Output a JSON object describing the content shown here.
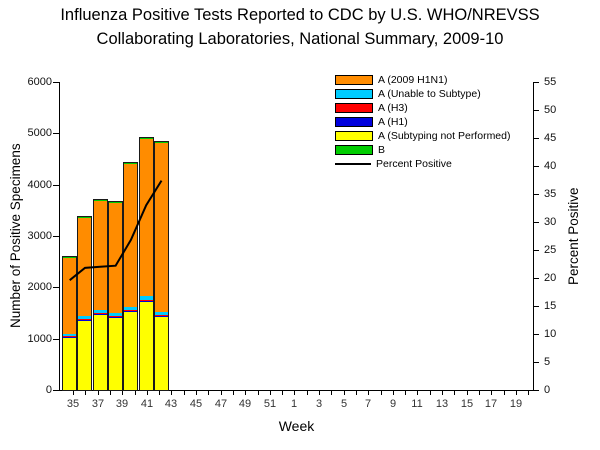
{
  "title": {
    "line1": "Influenza Positive Tests Reported to CDC by U.S. WHO/NREVSS",
    "line2": "Collaborating Laboratories, National Summary, 2009-10"
  },
  "chart_data": {
    "type": "bar",
    "subtype": "stacked-bars-with-line",
    "title": "Influenza Positive Tests Reported to CDC by U.S. WHO/NREVSS Collaborating Laboratories, National Summary, 2009-10",
    "xlabel": "Week",
    "ylabel_left": "Number of Positive Specimens",
    "ylabel_right": "Percent Positive",
    "ylim_left": [
      0,
      6000
    ],
    "ytick_step_left": 1000,
    "ylim_right": [
      0,
      55
    ],
    "ytick_step_right": 5,
    "grid": "off",
    "legend_position": "top-right",
    "x_weeks": [
      35,
      36,
      37,
      38,
      39,
      40,
      41,
      42,
      43,
      44,
      45,
      46,
      47,
      48,
      49,
      50,
      51,
      52,
      1,
      2,
      3,
      4,
      5,
      6,
      7,
      8,
      9,
      10,
      11,
      12,
      13,
      14,
      15,
      16,
      17,
      18,
      19,
      20
    ],
    "x_tick_labels": [
      "35",
      "37",
      "39",
      "41",
      "43",
      "45",
      "47",
      "49",
      "51",
      "1",
      "3",
      "5",
      "7",
      "9",
      "11",
      "13",
      "15",
      "17",
      "19"
    ],
    "bar_weeks": [
      35,
      36,
      37,
      38,
      39,
      40,
      41
    ],
    "series": [
      {
        "name": "A (2009 H1N1)",
        "color": "#FF8C00",
        "kind": "bar",
        "values": [
          1509,
          1933,
          2148,
          2178,
          2802,
          3080,
          3312
        ]
      },
      {
        "name": "A (Unable to Subtype)",
        "color": "#00CCFF",
        "kind": "bar",
        "values": [
          45,
          55,
          60,
          55,
          60,
          70,
          55
        ]
      },
      {
        "name": "A (H3)",
        "color": "#FF0000",
        "kind": "bar",
        "values": [
          12,
          15,
          15,
          12,
          15,
          18,
          15
        ]
      },
      {
        "name": "A (H1)",
        "color": "#0000DD",
        "kind": "bar",
        "values": [
          10,
          12,
          12,
          10,
          12,
          15,
          12
        ]
      },
      {
        "name": "A (Subtyping not Performed)",
        "color": "#FFFF00",
        "kind": "bar",
        "values": [
          1020,
          1350,
          1460,
          1400,
          1525,
          1720,
          1430
        ]
      },
      {
        "name": "B",
        "color": "#00CC00",
        "kind": "bar",
        "values": [
          4,
          5,
          5,
          5,
          6,
          7,
          6
        ]
      },
      {
        "name": "Percent Positive",
        "color": "#000000",
        "kind": "line",
        "values": [
          19.6,
          21.8,
          22.0,
          22.2,
          26.8,
          33.0,
          37.4
        ]
      }
    ],
    "bar_totals": [
      2600,
      3370,
      3700,
      3660,
      4420,
      4910,
      4830
    ],
    "stack_order_bottom_to_top": [
      4,
      3,
      2,
      1,
      0,
      5
    ]
  }
}
